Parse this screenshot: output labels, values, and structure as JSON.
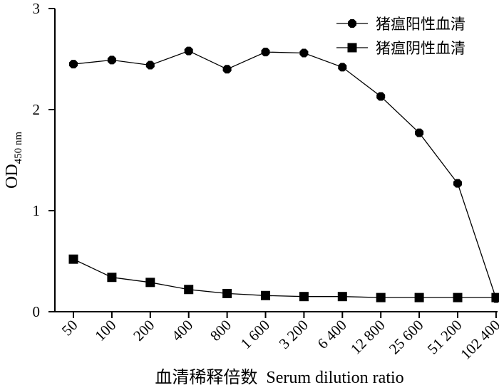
{
  "chart_data": {
    "type": "line",
    "x_label": "血清稀释倍数  Serum dilution ratio",
    "y_label": "OD",
    "y_label_subscript": "450 nm",
    "categories": [
      "50",
      "100",
      "200",
      "400",
      "800",
      "1 600",
      "3 200",
      "6 400",
      "12 800",
      "25 600",
      "51 200",
      "102 400"
    ],
    "ylim": [
      0,
      3
    ],
    "yticks": [
      "0",
      "1",
      "2",
      "3"
    ],
    "grid": false,
    "legend_position": "top-right",
    "series": [
      {
        "name": "猪瘟阳性血清",
        "marker": "circle",
        "values": [
          2.45,
          2.49,
          2.44,
          2.58,
          2.4,
          2.57,
          2.56,
          2.42,
          2.13,
          1.77,
          1.27,
          0.13
        ]
      },
      {
        "name": "猪瘟阴性血清",
        "marker": "square",
        "values": [
          0.52,
          0.34,
          0.29,
          0.22,
          0.18,
          0.16,
          0.15,
          0.15,
          0.14,
          0.14,
          0.14,
          0.14
        ]
      }
    ]
  }
}
